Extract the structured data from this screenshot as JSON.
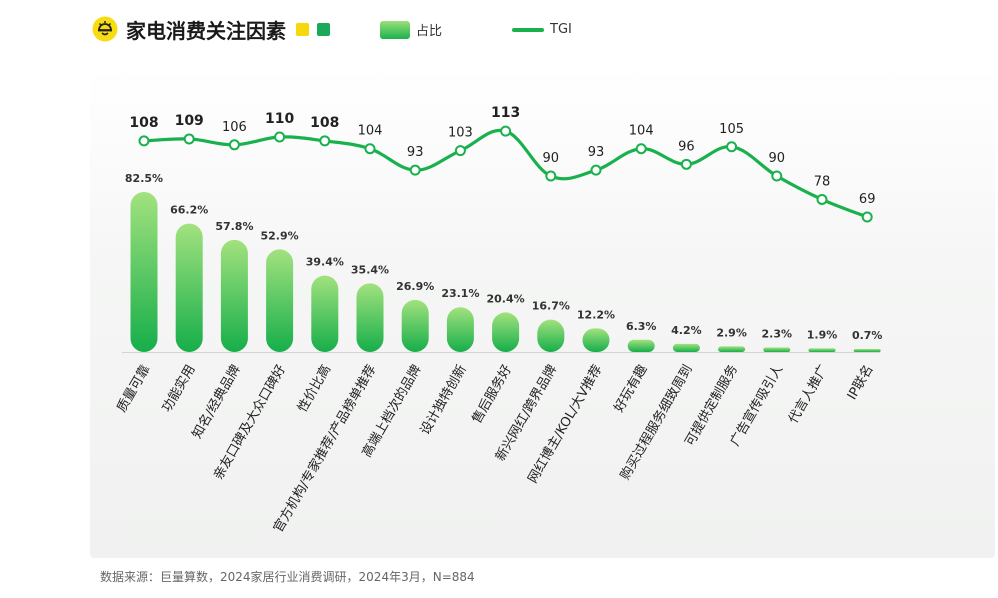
{
  "header": {
    "title": "家电消费关注因素",
    "accent_yellow": "#f5d90a",
    "accent_green": "#1aa85a"
  },
  "legend": {
    "bar_label": "占比",
    "line_label": "TGI"
  },
  "source": "数据来源：巨量算数，2024家居行业消费调研，2024年3月，N=884",
  "chart_data": {
    "type": "bar",
    "categories": [
      "质量可靠",
      "功能实用",
      "知名/经典品牌",
      "亲友口碑及大众口碑好",
      "性价比高",
      "官方机构/专家推荐/产品榜单推荐",
      "高端上档次的品牌",
      "设计独特创新",
      "售后服务好",
      "新兴网红/跨界品牌",
      "网红博主/KOL/大V推荐",
      "好玩有趣",
      "购买过程服务细致周到",
      "可提供定制服务",
      "广告宣传吸引人",
      "代言人推广",
      "IP联名"
    ],
    "series": [
      {
        "name": "占比",
        "type": "bar",
        "values": [
          82.5,
          66.2,
          57.8,
          52.9,
          39.4,
          35.4,
          26.9,
          23.1,
          20.4,
          16.7,
          12.2,
          6.3,
          4.2,
          2.9,
          2.3,
          1.9,
          0.7
        ],
        "value_labels": [
          "82.5%",
          "66.2%",
          "57.8%",
          "52.9%",
          "39.4%",
          "35.4%",
          "26.9%",
          "23.1%",
          "20.4%",
          "16.7%",
          "12.2%",
          "6.3%",
          "4.2%",
          "2.9%",
          "2.3%",
          "1.9%",
          "0.7%"
        ]
      },
      {
        "name": "TGI",
        "type": "line",
        "values": [
          108,
          109,
          106,
          110,
          108,
          104,
          93,
          103,
          113,
          90,
          93,
          104,
          96,
          105,
          90,
          78,
          69
        ],
        "bold_labels": [
          true,
          true,
          false,
          true,
          true,
          false,
          false,
          false,
          true,
          false,
          false,
          false,
          false,
          false,
          false,
          false,
          false
        ]
      }
    ],
    "bar_color_top": "#a2e27e",
    "bar_color_bottom": "#16ae4a",
    "line_color": "#19b14d",
    "grid": false,
    "legend_position": "top"
  }
}
